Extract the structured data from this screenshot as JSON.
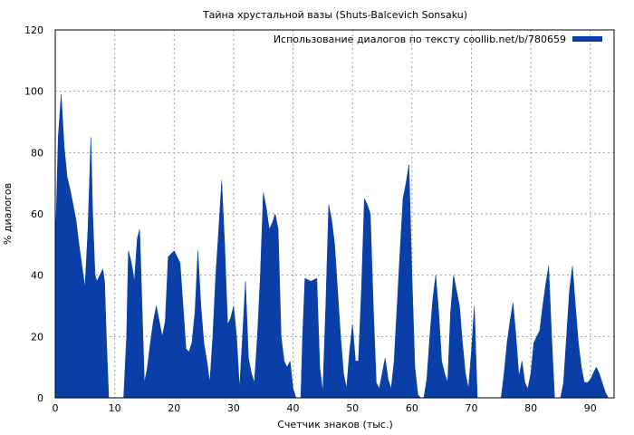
{
  "chart_data": {
    "type": "area",
    "title": "Тайна хрустальной вазы (Shuts-Balcevich Sonsaku)",
    "xlabel": "Счетчик знаков (тыс.)",
    "ylabel": "% диалогов",
    "xlim": [
      0,
      94
    ],
    "ylim": [
      0,
      120
    ],
    "x_ticks": [
      0,
      10,
      20,
      30,
      40,
      50,
      60,
      70,
      80,
      90
    ],
    "y_ticks": [
      0,
      20,
      40,
      60,
      80,
      100,
      120
    ],
    "grid": true,
    "legend_position": "top-right",
    "series": [
      {
        "name": "Использование диалогов по тексту coollib.net/b/780659",
        "color": "#0a3fa8",
        "points": [
          [
            0,
            48
          ],
          [
            0.5,
            85
          ],
          [
            1,
            99
          ],
          [
            1.5,
            82
          ],
          [
            2,
            72
          ],
          [
            2.5,
            68
          ],
          [
            3,
            63
          ],
          [
            3.5,
            58
          ],
          [
            4,
            50
          ],
          [
            4.5,
            43
          ],
          [
            5,
            36
          ],
          [
            5.5,
            55
          ],
          [
            6,
            85
          ],
          [
            6.3,
            60
          ],
          [
            6.7,
            40
          ],
          [
            7,
            38
          ],
          [
            7.5,
            40
          ],
          [
            8,
            42
          ],
          [
            8.3,
            38
          ],
          [
            8.6,
            20
          ],
          [
            9,
            0
          ],
          [
            11.5,
            0
          ],
          [
            12,
            20
          ],
          [
            12.3,
            48
          ],
          [
            12.7,
            45
          ],
          [
            13,
            42
          ],
          [
            13.3,
            38
          ],
          [
            13.8,
            52
          ],
          [
            14.2,
            55
          ],
          [
            14.6,
            30
          ],
          [
            15,
            5
          ],
          [
            15.5,
            10
          ],
          [
            16,
            18
          ],
          [
            16.5,
            25
          ],
          [
            17,
            30
          ],
          [
            17.5,
            25
          ],
          [
            18,
            20
          ],
          [
            18.5,
            25
          ],
          [
            19,
            46
          ],
          [
            20,
            48
          ],
          [
            21,
            44
          ],
          [
            21.5,
            30
          ],
          [
            22,
            16
          ],
          [
            22.5,
            15
          ],
          [
            23,
            18
          ],
          [
            23.5,
            28
          ],
          [
            24,
            48
          ],
          [
            24.5,
            30
          ],
          [
            25,
            18
          ],
          [
            25.5,
            12
          ],
          [
            26,
            5
          ],
          [
            26.5,
            20
          ],
          [
            27,
            40
          ],
          [
            27.5,
            55
          ],
          [
            28,
            71
          ],
          [
            28.5,
            50
          ],
          [
            29,
            24
          ],
          [
            29.5,
            26
          ],
          [
            30,
            30
          ],
          [
            30.5,
            20
          ],
          [
            31,
            3
          ],
          [
            31.5,
            20
          ],
          [
            32,
            38
          ],
          [
            32.5,
            13
          ],
          [
            33,
            8
          ],
          [
            33.5,
            5
          ],
          [
            34,
            20
          ],
          [
            34.5,
            40
          ],
          [
            35,
            67
          ],
          [
            35.5,
            62
          ],
          [
            36,
            55
          ],
          [
            36.5,
            57
          ],
          [
            37,
            60
          ],
          [
            37.5,
            55
          ],
          [
            38,
            20
          ],
          [
            38.5,
            12
          ],
          [
            39,
            10
          ],
          [
            39.5,
            12
          ],
          [
            40,
            3
          ],
          [
            40.5,
            0
          ],
          [
            41.3,
            0
          ],
          [
            41.6,
            20
          ],
          [
            42,
            39
          ],
          [
            43,
            38
          ],
          [
            44,
            39
          ],
          [
            44.5,
            10
          ],
          [
            45,
            2
          ],
          [
            45.5,
            30
          ],
          [
            46,
            63
          ],
          [
            46.5,
            58
          ],
          [
            47,
            50
          ],
          [
            47.5,
            35
          ],
          [
            48,
            20
          ],
          [
            48.5,
            8
          ],
          [
            49,
            3
          ],
          [
            49.5,
            15
          ],
          [
            50,
            24
          ],
          [
            50.5,
            12
          ],
          [
            51,
            12
          ],
          [
            51.5,
            35
          ],
          [
            52,
            65
          ],
          [
            52.5,
            63
          ],
          [
            53,
            60
          ],
          [
            53.5,
            30
          ],
          [
            54,
            5
          ],
          [
            54.5,
            3
          ],
          [
            55,
            8
          ],
          [
            55.5,
            13
          ],
          [
            56,
            6
          ],
          [
            56.5,
            3
          ],
          [
            57,
            12
          ],
          [
            57.5,
            30
          ],
          [
            58,
            48
          ],
          [
            58.5,
            65
          ],
          [
            59,
            70
          ],
          [
            59.5,
            76
          ],
          [
            60,
            40
          ],
          [
            60.5,
            10
          ],
          [
            61,
            1
          ],
          [
            61.5,
            0
          ],
          [
            62,
            0
          ],
          [
            62.5,
            6
          ],
          [
            63,
            20
          ],
          [
            63.5,
            32
          ],
          [
            64,
            40
          ],
          [
            64.5,
            28
          ],
          [
            65,
            12
          ],
          [
            65.5,
            8
          ],
          [
            66,
            5
          ],
          [
            66.5,
            28
          ],
          [
            67,
            40
          ],
          [
            67.5,
            35
          ],
          [
            68,
            30
          ],
          [
            68.5,
            18
          ],
          [
            69,
            8
          ],
          [
            69.5,
            3
          ],
          [
            70,
            15
          ],
          [
            70.5,
            30
          ],
          [
            71,
            0
          ],
          [
            75,
            0
          ],
          [
            75.5,
            8
          ],
          [
            76,
            18
          ],
          [
            76.5,
            25
          ],
          [
            77,
            31
          ],
          [
            77.5,
            20
          ],
          [
            78,
            7
          ],
          [
            78.5,
            12
          ],
          [
            79,
            5
          ],
          [
            79.5,
            3
          ],
          [
            80,
            8
          ],
          [
            80.5,
            18
          ],
          [
            81,
            20
          ],
          [
            81.5,
            22
          ],
          [
            82,
            30
          ],
          [
            82.5,
            37
          ],
          [
            83,
            43
          ],
          [
            83.5,
            20
          ],
          [
            84,
            0
          ],
          [
            85,
            0
          ],
          [
            85.5,
            5
          ],
          [
            86,
            20
          ],
          [
            86.5,
            35
          ],
          [
            87,
            43
          ],
          [
            87.5,
            30
          ],
          [
            88,
            18
          ],
          [
            88.5,
            10
          ],
          [
            89,
            5
          ],
          [
            89.5,
            5
          ],
          [
            90,
            6
          ],
          [
            90.5,
            8
          ],
          [
            91,
            10
          ],
          [
            91.5,
            8
          ],
          [
            92,
            5
          ],
          [
            92.5,
            2
          ],
          [
            93,
            0
          ]
        ]
      }
    ]
  }
}
